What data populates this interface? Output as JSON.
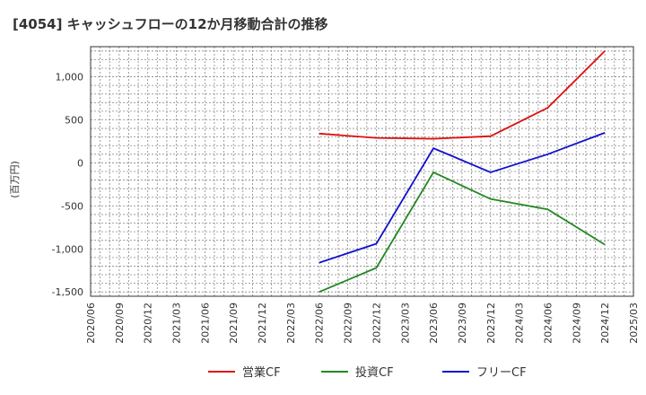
{
  "chart_data": {
    "type": "line",
    "title": "[4054]  キャッシュフローの12か月移動合計の推移",
    "ylabel": "(百万円)",
    "xlabel": "",
    "ylim": [
      -1550,
      1350
    ],
    "yticks": [
      1000,
      500,
      0,
      -500,
      -1000,
      -1500
    ],
    "ytick_labels": [
      "1,000",
      "500",
      "0",
      "-500",
      "-1,000",
      "-1,500"
    ],
    "x_categories": [
      "2020/06",
      "2020/09",
      "2020/12",
      "2021/03",
      "2021/06",
      "2021/09",
      "2021/12",
      "2022/03",
      "2022/06",
      "2022/09",
      "2022/12",
      "2023/03",
      "2023/06",
      "2023/09",
      "2023/12",
      "2024/03",
      "2024/06",
      "2024/09",
      "2024/12",
      "2025/03"
    ],
    "series": [
      {
        "name": "営業CF",
        "color": "#dd1111",
        "points": [
          [
            "2022/06",
            340
          ],
          [
            "2022/12",
            290
          ],
          [
            "2023/06",
            280
          ],
          [
            "2023/12",
            310
          ],
          [
            "2024/06",
            640
          ],
          [
            "2024/12",
            1300
          ]
        ]
      },
      {
        "name": "投資CF",
        "color": "#228822",
        "points": [
          [
            "2022/06",
            -1500
          ],
          [
            "2022/12",
            -1220
          ],
          [
            "2023/06",
            -110
          ],
          [
            "2023/12",
            -420
          ],
          [
            "2024/06",
            -540
          ],
          [
            "2024/12",
            -950
          ]
        ]
      },
      {
        "name": "フリーCF",
        "color": "#1111cc",
        "points": [
          [
            "2022/06",
            -1160
          ],
          [
            "2022/12",
            -940
          ],
          [
            "2023/06",
            170
          ],
          [
            "2023/12",
            -110
          ],
          [
            "2024/06",
            100
          ],
          [
            "2024/12",
            350
          ]
        ]
      }
    ],
    "grid": true,
    "legend": "bottom"
  }
}
